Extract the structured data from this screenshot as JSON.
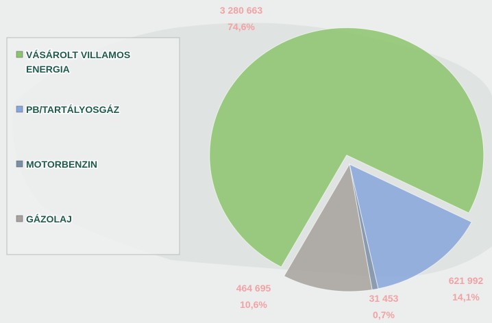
{
  "chart_data": {
    "type": "pie",
    "categories": [
      "VÁSÁROLT VILLAMOS ENERGIA",
      "PB/TARTÁLYOSGÁZ",
      "MOTORBENZIN",
      "GÁZOLAJ"
    ],
    "values": [
      3280663,
      621992,
      31453,
      464695
    ],
    "value_labels": [
      "3 280 663",
      "621 992",
      "31 453",
      "464 695"
    ],
    "percent_labels": [
      "74,6%",
      "14,1%",
      "0,7%",
      "10,6%"
    ],
    "colors": [
      "#8cc46c",
      "#88a6dc",
      "#7c8ea6",
      "#a7a29e"
    ],
    "legend": "left"
  }
}
